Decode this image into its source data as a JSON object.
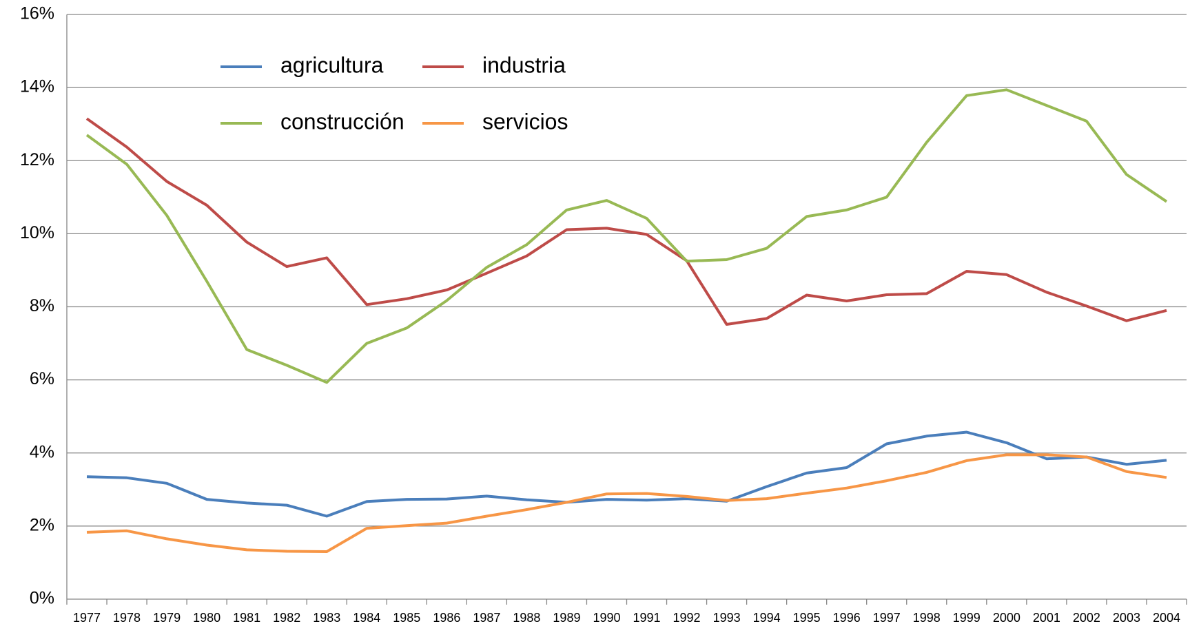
{
  "chart_data": {
    "type": "line",
    "categories": [
      "1977",
      "1978",
      "1979",
      "1980",
      "1981",
      "1982",
      "1983",
      "1984",
      "1985",
      "1986",
      "1987",
      "1988",
      "1989",
      "1990",
      "1991",
      "1992",
      "1993",
      "1994",
      "1995",
      "1996",
      "1997",
      "1998",
      "1999",
      "2000",
      "2001",
      "2002",
      "2003",
      "2004"
    ],
    "series": [
      {
        "name": "agricultura",
        "color": "#4a7ebb",
        "values": [
          3.35,
          3.32,
          3.17,
          2.73,
          2.63,
          2.57,
          2.27,
          2.67,
          2.73,
          2.74,
          2.82,
          2.72,
          2.65,
          2.73,
          2.71,
          2.75,
          2.68,
          3.08,
          3.45,
          3.6,
          4.25,
          4.46,
          4.57,
          4.28,
          3.84,
          3.89,
          3.69,
          3.8
        ]
      },
      {
        "name": "industria",
        "color": "#be4b48",
        "values": [
          13.15,
          12.37,
          11.43,
          10.78,
          9.77,
          9.1,
          9.34,
          8.06,
          8.22,
          8.46,
          8.92,
          9.39,
          10.11,
          10.15,
          9.98,
          9.26,
          7.52,
          7.68,
          8.32,
          8.16,
          8.33,
          8.36,
          8.97,
          8.88,
          8.4,
          8.02,
          7.62,
          7.9
        ]
      },
      {
        "name": "construcción",
        "color": "#98b954",
        "values": [
          12.7,
          11.9,
          10.5,
          8.7,
          6.83,
          6.4,
          5.93,
          7.0,
          7.42,
          8.17,
          9.08,
          9.7,
          10.65,
          10.91,
          10.42,
          9.25,
          9.29,
          9.6,
          10.47,
          10.65,
          11.0,
          12.5,
          13.78,
          13.94,
          13.51,
          13.08,
          11.62,
          10.88
        ]
      },
      {
        "name": "servicios",
        "color": "#f79646",
        "values": [
          1.83,
          1.87,
          1.65,
          1.48,
          1.35,
          1.31,
          1.3,
          1.94,
          2.01,
          2.08,
          2.27,
          2.45,
          2.65,
          2.88,
          2.89,
          2.81,
          2.7,
          2.75,
          2.9,
          3.04,
          3.24,
          3.47,
          3.79,
          3.95,
          3.95,
          3.89,
          3.49,
          3.33
        ]
      }
    ],
    "ylim": [
      0,
      16
    ],
    "yticks": [
      {
        "value": 0,
        "label": "0%"
      },
      {
        "value": 2,
        "label": "2%"
      },
      {
        "value": 4,
        "label": "4%"
      },
      {
        "value": 6,
        "label": "6%"
      },
      {
        "value": 8,
        "label": "8%"
      },
      {
        "value": 10,
        "label": "10%"
      },
      {
        "value": 12,
        "label": "12%"
      },
      {
        "value": 14,
        "label": "14%"
      },
      {
        "value": 16,
        "label": "16%"
      }
    ],
    "grid": true,
    "legend_position": "upper left"
  }
}
